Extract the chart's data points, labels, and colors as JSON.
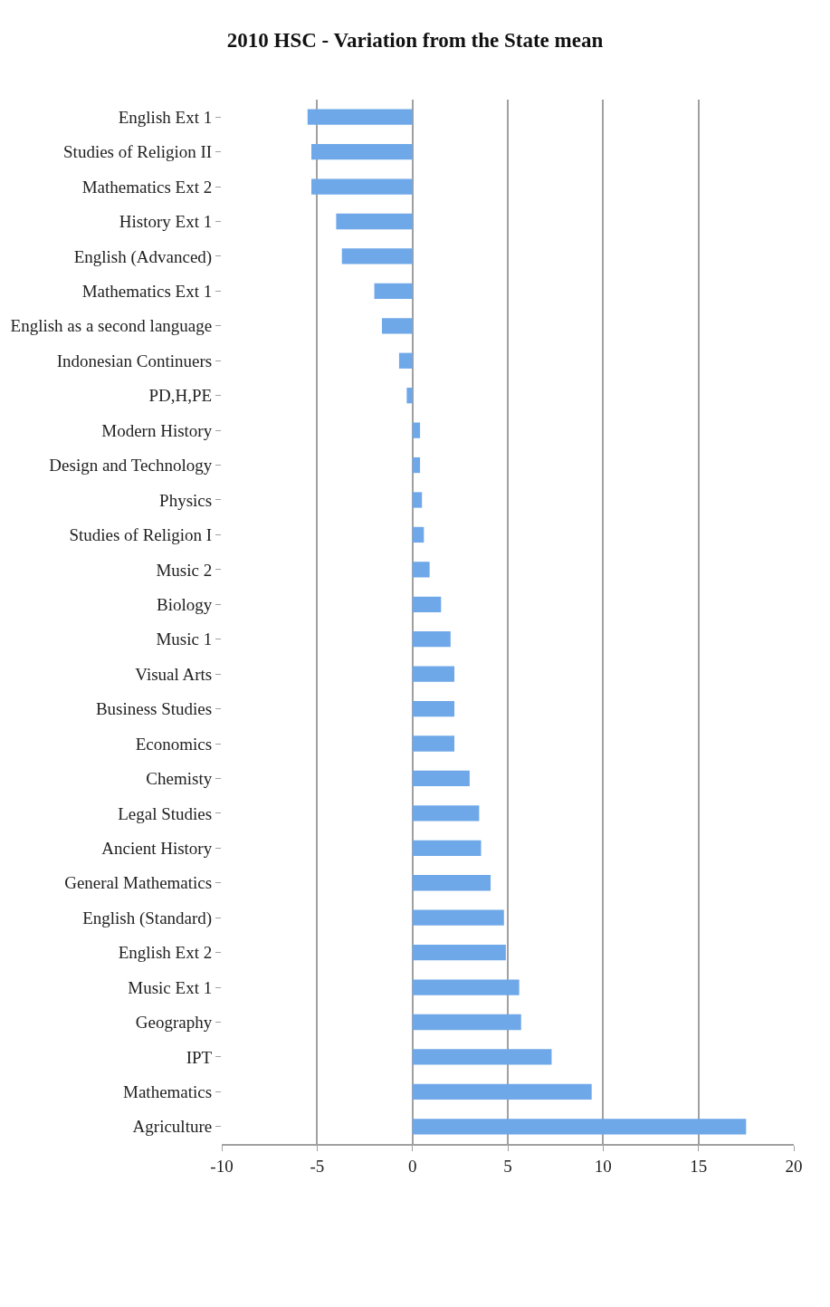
{
  "chart_data": {
    "type": "bar",
    "orientation": "horizontal",
    "title": "2010 HSC - Variation from the State mean",
    "categories": [
      "English Ext 1",
      "Studies of Religion II",
      "Mathematics Ext 2",
      "History Ext 1",
      "English (Advanced)",
      "Mathematics Ext 1",
      "English as a second language",
      "Indonesian Continuers",
      "PD,H,PE",
      "Modern History",
      "Design and Technology",
      "Physics",
      "Studies of Religion I",
      "Music 2",
      "Biology",
      "Music 1",
      "Visual Arts",
      "Business Studies",
      "Economics",
      "Chemisty",
      "Legal Studies",
      "Ancient History",
      "General Mathematics",
      "English (Standard)",
      "English Ext 2",
      "Music Ext 1",
      "Geography",
      "IPT",
      "Mathematics",
      "Agriculture"
    ],
    "values": [
      -5.5,
      -5.3,
      -5.3,
      -4.0,
      -3.7,
      -2.0,
      -1.6,
      -0.7,
      -0.3,
      0.4,
      0.4,
      0.5,
      0.6,
      0.9,
      1.5,
      2.0,
      2.2,
      2.2,
      2.2,
      3.0,
      3.5,
      3.6,
      4.1,
      4.8,
      4.9,
      5.6,
      5.7,
      7.3,
      9.4,
      17.5
    ],
    "color": "#6fa8e8",
    "xlim": [
      -10,
      20
    ],
    "xticks": [
      -10,
      -5,
      0,
      5,
      10,
      15,
      20
    ],
    "grid": "x",
    "legend": false
  }
}
